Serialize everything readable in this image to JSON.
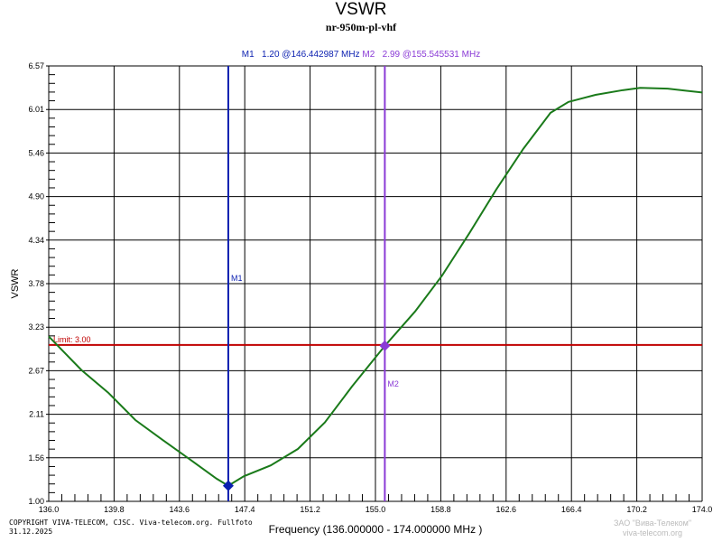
{
  "chart_data": {
    "type": "line",
    "title": "VSWR",
    "subtitle": "nr-950m-pl-vhf",
    "xlabel": "Frequency (136.000000 - 174.000000 MHz )",
    "ylabel": "VSWR",
    "xlim": [
      136.0,
      174.0
    ],
    "ylim": [
      1.0,
      6.57
    ],
    "x_ticks": [
      "136.0",
      "139.8",
      "143.6",
      "147.4",
      "151.2",
      "155.0",
      "158.8",
      "162.6",
      "166.4",
      "170.2",
      "174.0"
    ],
    "y_ticks": [
      "1.00",
      "1.56",
      "2.11",
      "2.67",
      "3.23",
      "3.78",
      "4.34",
      "4.90",
      "5.46",
      "6.01",
      "6.57"
    ],
    "grid": true,
    "series_color": "#1a7a1a",
    "x": [
      136.0,
      137.9,
      139.46,
      141.04,
      142.6,
      144.19,
      145.76,
      146.44,
      147.34,
      148.91,
      150.49,
      152.06,
      153.64,
      155.55,
      157.31,
      158.88,
      160.46,
      162.03,
      163.6,
      165.18,
      166.23,
      167.8,
      169.38,
      170.4,
      172.0,
      174.0
    ],
    "y": [
      3.11,
      2.68,
      2.39,
      2.04,
      1.79,
      1.54,
      1.29,
      1.2,
      1.32,
      1.46,
      1.67,
      2.01,
      2.47,
      2.99,
      3.43,
      3.89,
      4.43,
      4.99,
      5.51,
      5.97,
      6.11,
      6.2,
      6.26,
      6.29,
      6.28,
      6.23
    ],
    "limit": {
      "value": 3.0,
      "label": "Limit: 3.00",
      "color": "#c00000"
    },
    "markers": [
      {
        "name": "M1",
        "x": 146.442987,
        "y": 1.2,
        "readout_name": "M1",
        "readout": "1.20 @146.442987 MHz",
        "color": "#0a1fb0"
      },
      {
        "name": "M2",
        "x": 155.545531,
        "y": 2.99,
        "readout_name": "M2",
        "readout": "2.99 @155.545531 MHz",
        "color": "#8a3ad6"
      }
    ]
  },
  "footer": {
    "copyright": "COPYRIGHT VIVA-TELECOM, CJSC. Viva-telecom.org. Fullfoto",
    "date": "31.12.2025"
  },
  "watermark": {
    "line1": "ЗАО \"Вива-Телеком\"",
    "line2": "viva-telecom.org"
  }
}
